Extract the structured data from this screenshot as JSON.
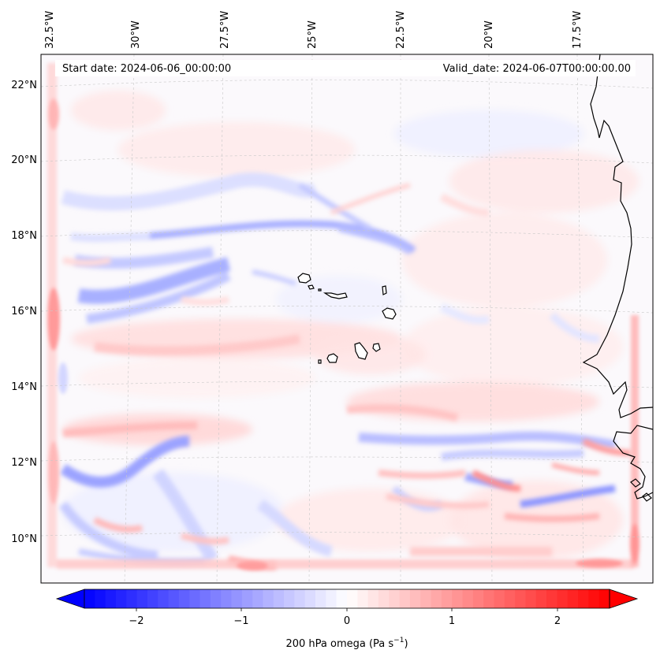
{
  "header": {
    "start_date": "Start date: 2024-06-06_00:00:00",
    "valid_date": "Valid_date: 2024-06-07T00:00:00.00"
  },
  "chart_data": {
    "type": "heatmap",
    "title": "",
    "variable_label": "200 hPa omega",
    "variable_units_prefix": "(Pa s",
    "variable_units_exp": "−1",
    "variable_units_suffix": ")",
    "lon_ticks": [
      "32.5°W",
      "30°W",
      "27.5°W",
      "25°W",
      "22.5°W",
      "20°W",
      "17.5°W"
    ],
    "lon_values": [
      -32.5,
      -30,
      -27.5,
      -25,
      -22.5,
      -20,
      -17.5
    ],
    "lat_ticks": [
      "22°N",
      "20°N",
      "18°N",
      "16°N",
      "14°N",
      "12°N",
      "10°N"
    ],
    "lat_values": [
      22,
      20,
      18,
      16,
      14,
      12,
      10
    ],
    "colorbar": {
      "ticks": [
        "−2",
        "−1",
        "0",
        "1",
        "2"
      ],
      "tick_values": [
        -2,
        -1,
        0,
        1,
        2
      ],
      "range": [
        -2.5,
        2.5
      ],
      "extend": "both",
      "cmap": "bwr",
      "low_color": "#0000ff",
      "mid_color": "#ffffff",
      "high_color": "#ff0000"
    },
    "grid": true,
    "features": {
      "west_africa_coast": true,
      "cape_verde_islands": true
    }
  }
}
